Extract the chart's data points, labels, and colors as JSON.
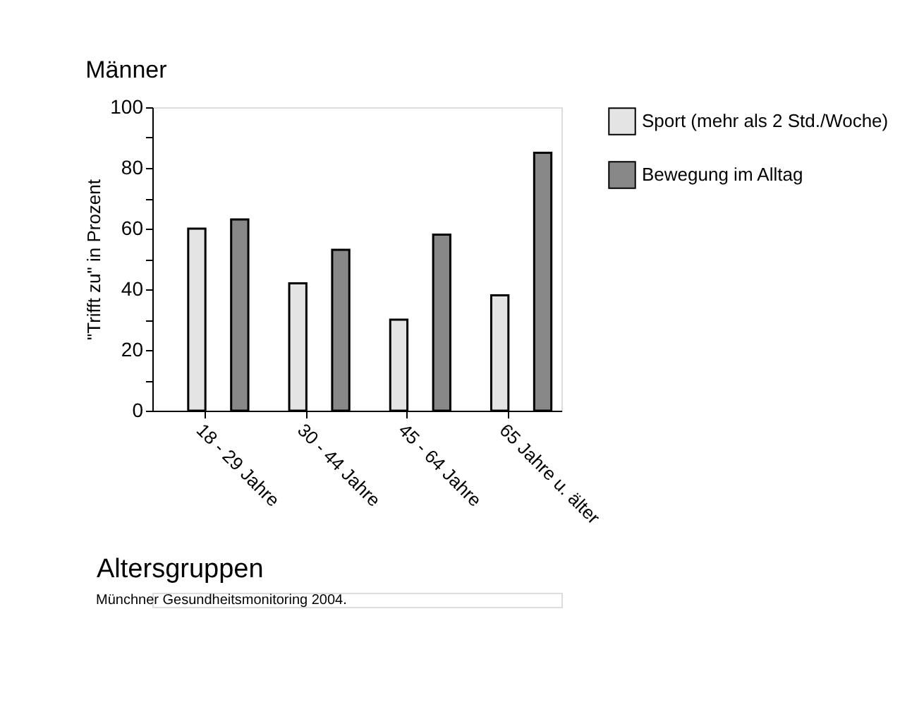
{
  "chart_data": {
    "type": "bar",
    "title": "Männer",
    "xlabel": "Altersgruppen",
    "ylabel": "\"Trifft zu\" in Prozent",
    "categories": [
      "18 - 29 Jahre",
      "30 - 44 Jahre",
      "45 - 64 Jahre",
      "65 Jahre u. älter"
    ],
    "series": [
      {
        "name": "Sport (mehr als 2 Std./Woche)",
        "color": "#e4e4e4",
        "values": [
          60,
          42,
          30,
          38
        ]
      },
      {
        "name": "Bewegung im Alltag",
        "color": "#888888",
        "values": [
          63,
          53,
          58,
          85
        ]
      }
    ],
    "ylim": [
      0,
      100
    ],
    "yticks": [
      0,
      {
        "value": 10,
        "label": null
      },
      20,
      {
        "value": 30,
        "label": null
      },
      40,
      {
        "value": 50,
        "label": null
      },
      60,
      {
        "value": 70,
        "label": null
      },
      80,
      {
        "value": 90,
        "label": null
      },
      100
    ],
    "grid": false,
    "legend": "right",
    "annotations": [
      "Münchner Gesundheitsmonitoring 2004."
    ]
  }
}
